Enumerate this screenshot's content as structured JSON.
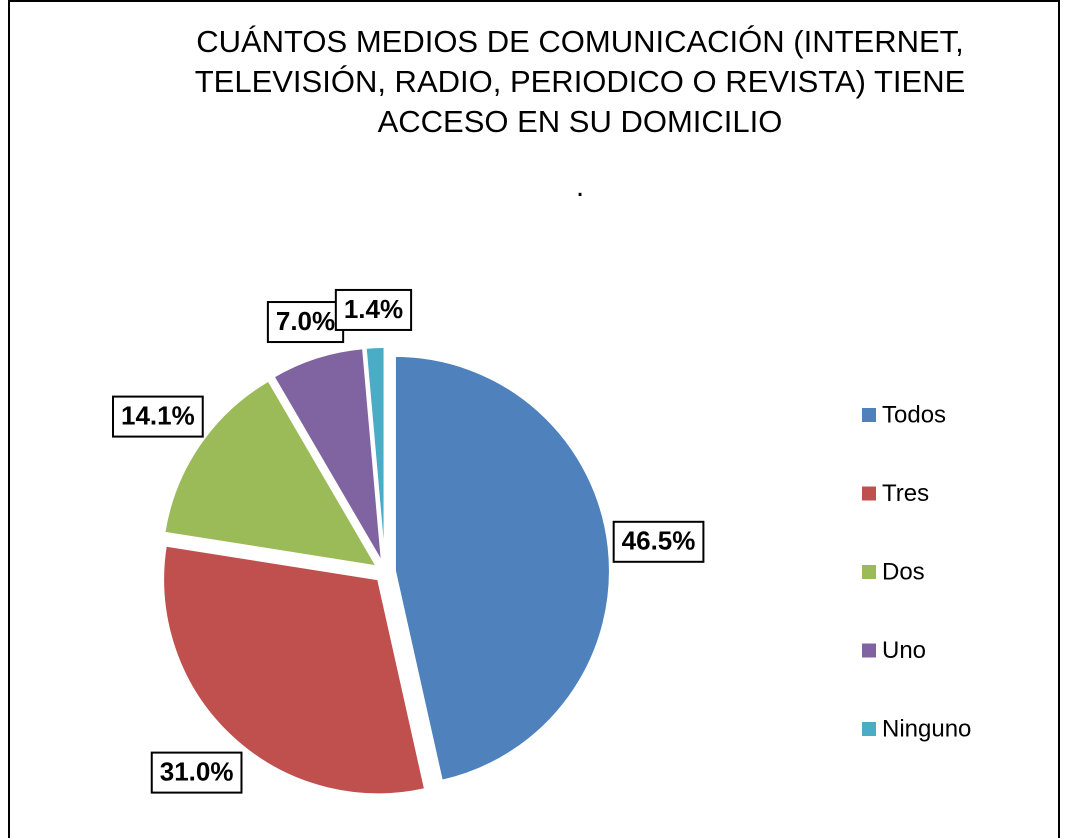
{
  "chart_data": {
    "type": "pie",
    "title": "CUÁNTOS MEDIOS DE COMUNICACIÓN (INTERNET,\nTELEVISIÓN, RADIO, PERIODICO O REVISTA) TIENE\nACCESO EN SU DOMICILIO",
    "subtitle": ".",
    "categories": [
      "Todos",
      "Tres",
      "Dos",
      "Uno",
      "Ninguno"
    ],
    "values": [
      46.5,
      31.0,
      14.1,
      7.0,
      1.4
    ],
    "value_labels": [
      "46.5%",
      "31.0%",
      "14.1%",
      "7.0%",
      "1.4%"
    ],
    "colors": [
      "#4f81bd",
      "#c0504d",
      "#9bbb59",
      "#8064a2",
      "#4bacc6"
    ],
    "legend": "right"
  }
}
